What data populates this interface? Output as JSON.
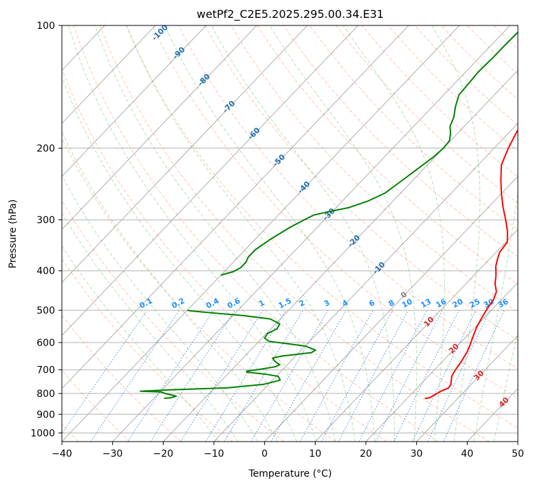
{
  "chart_data": {
    "type": "line",
    "subtype": "skew-T log-P diagram",
    "title": "wetPf2_C2E5.2025.295.00.34.E31",
    "xlabel": "Temperature (°C)",
    "ylabel": "Pressure (hPa)",
    "xlim": [
      -40,
      50
    ],
    "ylim": [
      1050,
      100
    ],
    "y_scale": "log",
    "grid": true,
    "x_ticks": [
      "−40",
      "−30",
      "−20",
      "−10",
      "0",
      "10",
      "20",
      "30",
      "40",
      "50"
    ],
    "y_ticks": [
      "100",
      "200",
      "300",
      "400",
      "500",
      "600",
      "700",
      "800",
      "900",
      "1000"
    ],
    "y_tick_values": [
      100,
      200,
      300,
      400,
      500,
      600,
      700,
      800,
      900,
      1000
    ],
    "colors": {
      "temperature": "#ff0000",
      "dewpoint": "#008000",
      "dry_adiabat": "#ff7f50",
      "moist_adiabat": "#5cb85c",
      "mixing_ratio": "#1f77d4",
      "isotherm": "#555555",
      "isotherm_label": "#1f6fb0",
      "mixing_label": "#1e90ff",
      "positive_label": "#d62728",
      "zero_label": "#808080"
    },
    "series": [
      {
        "role": "temperature",
        "points": [
          [
            823,
            23.5
          ],
          [
            820,
            24.3
          ],
          [
            805,
            24.8
          ],
          [
            790,
            25.3
          ],
          [
            775,
            26.2
          ],
          [
            760,
            26.0
          ],
          [
            740,
            25.2
          ],
          [
            725,
            24.6
          ],
          [
            710,
            24.3
          ],
          [
            690,
            24.0
          ],
          [
            670,
            23.8
          ],
          [
            650,
            23.4
          ],
          [
            630,
            23.0
          ],
          [
            610,
            22.4
          ],
          [
            590,
            21.7
          ],
          [
            570,
            21.0
          ],
          [
            550,
            20.3
          ],
          [
            520,
            19.5
          ],
          [
            500,
            19.0
          ],
          [
            485,
            18.7
          ],
          [
            470,
            18.4
          ],
          [
            450,
            17.5
          ],
          [
            430,
            15.7
          ],
          [
            410,
            14.3
          ],
          [
            390,
            12.6
          ],
          [
            375,
            11.6
          ],
          [
            360,
            10.7
          ],
          [
            340,
            10.3
          ],
          [
            320,
            8.3
          ],
          [
            300,
            5.8
          ],
          [
            280,
            3.0
          ],
          [
            260,
            0.2
          ],
          [
            240,
            -2.6
          ],
          [
            220,
            -5.4
          ],
          [
            200,
            -7.2
          ],
          [
            185,
            -8.4
          ],
          [
            170,
            -9.5
          ],
          [
            160,
            -10.0
          ],
          [
            150,
            -10.1
          ],
          [
            140,
            -10.3
          ],
          [
            130,
            -11.0
          ],
          [
            120,
            -12.9
          ],
          [
            113,
            -14.2
          ],
          [
            105,
            -15.5
          ],
          [
            100,
            -16.3
          ]
        ]
      },
      {
        "role": "dewpoint",
        "points": [
          [
            822,
            -28.0
          ],
          [
            820,
            -26.8
          ],
          [
            812,
            -26.0
          ],
          [
            805,
            -27.6
          ],
          [
            800,
            -28.7
          ],
          [
            793,
            -29.8
          ],
          [
            790,
            -34.0
          ],
          [
            785,
            -30.0
          ],
          [
            775,
            -17.5
          ],
          [
            760,
            -11.0
          ],
          [
            742,
            -8.5
          ],
          [
            726,
            -9.6
          ],
          [
            718,
            -12.3
          ],
          [
            709,
            -16.6
          ],
          [
            705,
            -16.8
          ],
          [
            697,
            -14.3
          ],
          [
            688,
            -12.0
          ],
          [
            680,
            -11.5
          ],
          [
            668,
            -13.0
          ],
          [
            655,
            -14.2
          ],
          [
            648,
            -12.8
          ],
          [
            635,
            -7.5
          ],
          [
            626,
            -7.2
          ],
          [
            612,
            -10.0
          ],
          [
            605,
            -13.4
          ],
          [
            596,
            -18.0
          ],
          [
            585,
            -19.5
          ],
          [
            570,
            -19.8
          ],
          [
            555,
            -18.8
          ],
          [
            540,
            -19.2
          ],
          [
            525,
            -22.0
          ],
          [
            515,
            -28.0
          ],
          [
            508,
            -34.0
          ],
          [
            502,
            -39.0
          ],
          [
            500,
            -40.0
          ]
        ]
      },
      {
        "role": "dewpoint_upper",
        "points": [
          [
            410,
            -40.0
          ],
          [
            402,
            -38.2
          ],
          [
            393,
            -37.5
          ],
          [
            381,
            -37.5
          ],
          [
            370,
            -38.0
          ],
          [
            355,
            -38.0
          ],
          [
            335,
            -37.0
          ],
          [
            313,
            -35.4
          ],
          [
            300,
            -34.0
          ],
          [
            292,
            -33.0
          ],
          [
            287,
            -31.0
          ],
          [
            280,
            -27.5
          ],
          [
            270,
            -25.0
          ],
          [
            258,
            -23.1
          ],
          [
            244,
            -22.3
          ],
          [
            225,
            -21.2
          ],
          [
            210,
            -20.3
          ],
          [
            200,
            -20.0
          ],
          [
            192,
            -20.2
          ],
          [
            184,
            -21.4
          ],
          [
            177,
            -22.8
          ],
          [
            168,
            -23.8
          ],
          [
            158,
            -25.5
          ],
          [
            148,
            -27.0
          ],
          [
            140,
            -27.2
          ],
          [
            130,
            -27.5
          ],
          [
            120,
            -27.3
          ],
          [
            112,
            -27.3
          ],
          [
            106,
            -27.2
          ],
          [
            100,
            -27.1
          ]
        ]
      }
    ],
    "isotherm_labels": [
      "-100",
      "-90",
      "-80",
      "-70",
      "-60",
      "-50",
      "-40",
      "-30",
      "-20",
      "-10",
      "0",
      "10",
      "20",
      "30",
      "40"
    ],
    "isotherm_label_values": [
      -100,
      -90,
      -80,
      -70,
      -60,
      -50,
      -40,
      -30,
      -20,
      -10,
      0,
      10,
      20,
      30,
      40
    ],
    "mixing_ratio_labels": [
      "0.1",
      "0.2",
      "0.4",
      "0.6",
      "1",
      "1.5",
      "2",
      "3",
      "4",
      "6",
      "8",
      "10",
      "13",
      "16",
      "20",
      "25",
      "30",
      "36"
    ],
    "mixing_ratio_values": [
      0.1,
      0.2,
      0.4,
      0.6,
      1,
      1.5,
      2,
      3,
      4,
      6,
      8,
      10,
      13,
      16,
      20,
      25,
      30,
      36
    ]
  }
}
